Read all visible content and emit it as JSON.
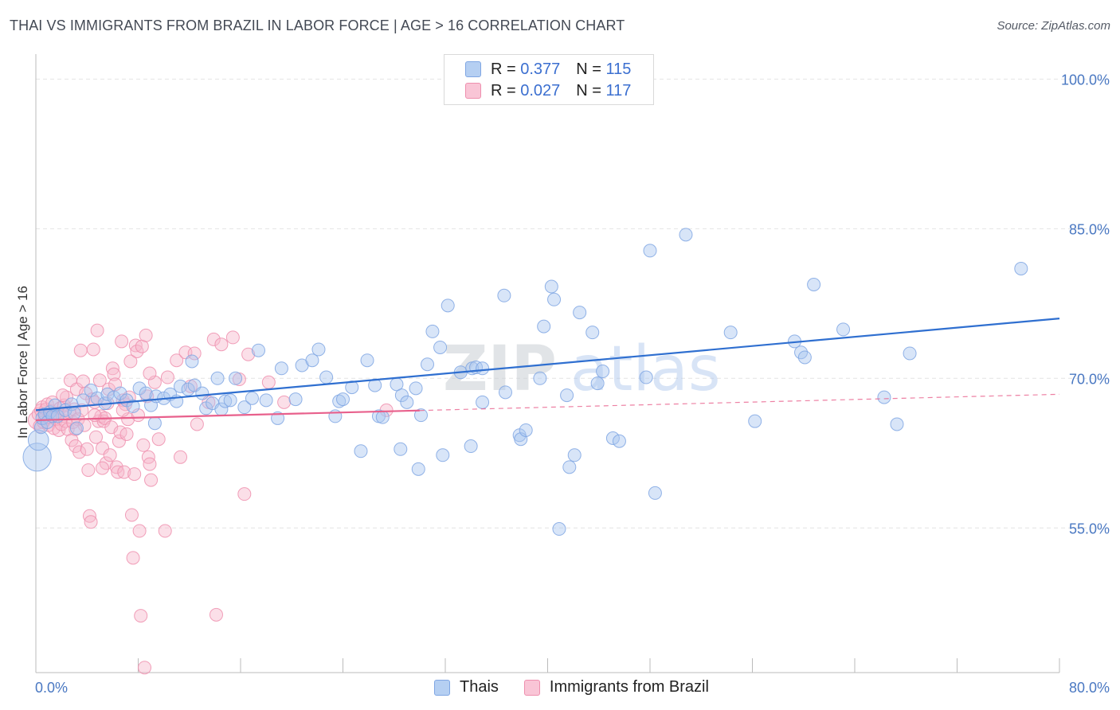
{
  "header": {
    "title": "THAI VS IMMIGRANTS FROM BRAZIL IN LABOR FORCE | AGE > 16 CORRELATION CHART",
    "source": "Source: ZipAtlas.com"
  },
  "legend": {
    "r_label": "R =",
    "n_label": "N =",
    "rows": [
      {
        "r": "0.377",
        "n": "115"
      },
      {
        "r": "0.027",
        "n": "117"
      }
    ]
  },
  "watermark": {
    "zip": "ZIP",
    "atlas": "atlas"
  },
  "colors": {
    "thai_fill": "#a9c6f0",
    "thai_stroke": "#7fa6e3",
    "thai_line": "#2f6fd0",
    "brazil_fill": "#f6b8cc",
    "brazil_stroke": "#ee8fae",
    "brazil_line": "#e8608c",
    "grid": "#e4e4e4",
    "tick_text": "#4a78c2"
  },
  "chart_data": {
    "type": "scatter",
    "title": "THAI VS IMMIGRANTS FROM BRAZIL IN LABOR FORCE | AGE > 16 CORRELATION CHART",
    "xlabel": "",
    "ylabel": "In Labor Force | Age > 16",
    "xlim": [
      0,
      80
    ],
    "ylim": [
      40.5,
      102.5
    ],
    "y_ticks": [
      {
        "value": 55,
        "label": "55.0%"
      },
      {
        "value": 70,
        "label": "70.0%"
      },
      {
        "value": 85,
        "label": "85.0%"
      },
      {
        "value": 100,
        "label": "100.0%"
      }
    ],
    "x_ticks_labeled": [
      {
        "value": 0,
        "label": "0.0%"
      },
      {
        "value": 80,
        "label": "80.0%"
      }
    ],
    "x_minor_ticks": [
      8,
      16,
      24,
      32,
      40,
      48,
      56,
      64,
      72,
      80
    ],
    "series": [
      {
        "name": "Thais",
        "r": 0.377,
        "n": 115,
        "trend": {
          "x0": 0,
          "y0": 66.8,
          "x1": 80,
          "y1": 76.0,
          "dashed_from": null
        },
        "points": [
          [
            0.1,
            62.1,
            2.2
          ],
          [
            0.2,
            63.8,
            1.6
          ],
          [
            0.4,
            65.1,
            1.0
          ],
          [
            0.5,
            66.0,
            1.0
          ],
          [
            0.7,
            66.4,
            1.0
          ],
          [
            0.9,
            65.6,
            1.0
          ],
          [
            1.1,
            66.6,
            1.0
          ],
          [
            1.3,
            66.2,
            1.0
          ],
          [
            1.5,
            67.3,
            1.0
          ],
          [
            1.7,
            66.2,
            1.0
          ],
          [
            2.3,
            66.8,
            1.0
          ],
          [
            2.8,
            67.4,
            1.0
          ],
          [
            3.0,
            66.5,
            1.0
          ],
          [
            3.2,
            65.0,
            1.0
          ],
          [
            3.7,
            67.8,
            1.0
          ],
          [
            4.3,
            68.8,
            1.0
          ],
          [
            4.8,
            68.0,
            1.0
          ],
          [
            5.4,
            67.5,
            1.0
          ],
          [
            5.6,
            68.4,
            1.0
          ],
          [
            6.1,
            68.1,
            1.0
          ],
          [
            6.6,
            68.5,
            1.0
          ],
          [
            7.1,
            67.8,
            1.0
          ],
          [
            7.6,
            67.2,
            1.0
          ],
          [
            8.1,
            69.0,
            1.0
          ],
          [
            8.6,
            68.5,
            1.0
          ],
          [
            9.0,
            67.3,
            1.0
          ],
          [
            9.4,
            68.2,
            1.0
          ],
          [
            10.0,
            68.0,
            1.0
          ],
          [
            10.5,
            68.4,
            1.0
          ],
          [
            11.0,
            67.7,
            1.0
          ],
          [
            11.3,
            69.2,
            1.0
          ],
          [
            11.9,
            68.9,
            1.0
          ],
          [
            12.2,
            71.7,
            1.0
          ],
          [
            12.4,
            69.3,
            1.0
          ],
          [
            13.0,
            68.5,
            1.0
          ],
          [
            13.3,
            67.0,
            1.0
          ],
          [
            13.8,
            67.5,
            1.0
          ],
          [
            14.2,
            70.0,
            1.0
          ],
          [
            14.5,
            66.9,
            1.0
          ],
          [
            14.8,
            67.7,
            1.0
          ],
          [
            15.2,
            67.8,
            1.0
          ],
          [
            15.6,
            70.0,
            1.0
          ],
          [
            16.3,
            67.1,
            1.0
          ],
          [
            16.9,
            68.0,
            1.0
          ],
          [
            17.4,
            72.8,
            1.0
          ],
          [
            18.0,
            67.8,
            1.0
          ],
          [
            18.9,
            66.0,
            1.0
          ],
          [
            19.2,
            71.0,
            1.0
          ],
          [
            20.3,
            67.9,
            1.0
          ],
          [
            20.8,
            71.3,
            1.0
          ],
          [
            21.6,
            71.8,
            1.0
          ],
          [
            22.1,
            72.9,
            1.0
          ],
          [
            22.7,
            70.1,
            1.0
          ],
          [
            23.4,
            66.2,
            1.0
          ],
          [
            23.7,
            67.7,
            1.0
          ],
          [
            24.0,
            67.9,
            1.0
          ],
          [
            24.7,
            69.1,
            1.0
          ],
          [
            25.9,
            71.8,
            1.0
          ],
          [
            26.5,
            69.3,
            1.0
          ],
          [
            26.8,
            66.2,
            1.0
          ],
          [
            28.2,
            69.4,
            1.0
          ],
          [
            28.6,
            68.3,
            1.0
          ],
          [
            29.0,
            67.6,
            1.0
          ],
          [
            29.7,
            69.0,
            1.0
          ],
          [
            30.1,
            66.3,
            1.0
          ],
          [
            30.6,
            71.4,
            1.0
          ],
          [
            31.0,
            74.7,
            1.0
          ],
          [
            31.6,
            73.1,
            1.0
          ],
          [
            32.2,
            77.3,
            1.0
          ],
          [
            33.2,
            70.6,
            1.0
          ],
          [
            34.1,
            71.0,
            1.0
          ],
          [
            34.4,
            71.1,
            1.0
          ],
          [
            34.9,
            71.0,
            1.0
          ],
          [
            36.6,
            78.3,
            1.0
          ],
          [
            37.8,
            64.3,
            1.0
          ],
          [
            37.9,
            63.9,
            1.0
          ],
          [
            38.3,
            64.8,
            1.0
          ],
          [
            39.4,
            70.0,
            1.0
          ],
          [
            39.7,
            75.2,
            1.0
          ],
          [
            40.3,
            79.2,
            1.0
          ],
          [
            40.5,
            77.9,
            1.0
          ],
          [
            41.5,
            68.3,
            1.0
          ],
          [
            41.7,
            61.1,
            1.0
          ],
          [
            42.5,
            76.6,
            1.0
          ],
          [
            43.5,
            74.6,
            1.0
          ],
          [
            43.9,
            69.5,
            1.0
          ],
          [
            44.3,
            70.7,
            1.0
          ],
          [
            45.1,
            64.0,
            1.0
          ],
          [
            45.6,
            63.7,
            1.0
          ],
          [
            47.7,
            70.1,
            1.0
          ],
          [
            48.0,
            82.8,
            1.0
          ],
          [
            48.4,
            58.5,
            1.0
          ],
          [
            50.8,
            84.4,
            1.0
          ],
          [
            54.3,
            74.6,
            1.0
          ],
          [
            56.2,
            65.7,
            1.0
          ],
          [
            59.3,
            73.7,
            1.0
          ],
          [
            59.8,
            72.6,
            1.0
          ],
          [
            60.1,
            72.1,
            1.0
          ],
          [
            60.8,
            79.4,
            1.0
          ],
          [
            63.1,
            74.9,
            1.0
          ],
          [
            66.3,
            68.1,
            1.0
          ],
          [
            67.3,
            65.4,
            1.0
          ],
          [
            68.3,
            72.5,
            1.0
          ],
          [
            77.0,
            81.0,
            1.0
          ],
          [
            25.4,
            62.7,
            1.0
          ],
          [
            27.1,
            66.1,
            1.0
          ],
          [
            28.5,
            62.9,
            1.0
          ],
          [
            29.9,
            60.9,
            1.0
          ],
          [
            31.8,
            62.3,
            1.0
          ],
          [
            34.0,
            63.2,
            1.0
          ],
          [
            34.9,
            67.6,
            1.0
          ],
          [
            36.7,
            68.6,
            1.0
          ],
          [
            40.9,
            54.9,
            1.0
          ],
          [
            42.1,
            62.3,
            1.0
          ],
          [
            9.3,
            65.5,
            1.0
          ]
        ]
      },
      {
        "name": "Immigrants from Brazil",
        "r": 0.027,
        "n": 117,
        "trend": {
          "x0": 0,
          "y0": 65.8,
          "x1": 80,
          "y1": 68.4,
          "dashed_from": 30
        },
        "points": [
          [
            0.1,
            65.8,
            1.4
          ],
          [
            0.2,
            66.4,
            1.0
          ],
          [
            0.3,
            65.2,
            1.0
          ],
          [
            0.4,
            66.8,
            1.0
          ],
          [
            0.5,
            67.1,
            1.0
          ],
          [
            0.6,
            65.6,
            1.0
          ],
          [
            0.7,
            66.0,
            1.0
          ],
          [
            0.8,
            66.9,
            1.0
          ],
          [
            0.9,
            67.4,
            1.0
          ],
          [
            1.0,
            65.3,
            1.0
          ],
          [
            1.1,
            66.1,
            1.0
          ],
          [
            1.2,
            66.7,
            1.0
          ],
          [
            1.3,
            67.6,
            1.0
          ],
          [
            1.4,
            65.0,
            1.0
          ],
          [
            1.5,
            66.3,
            1.0
          ],
          [
            1.6,
            65.9,
            1.0
          ],
          [
            1.7,
            66.5,
            1.0
          ],
          [
            1.8,
            64.8,
            1.0
          ],
          [
            1.9,
            67.0,
            1.0
          ],
          [
            2.0,
            65.4,
            1.0
          ],
          [
            2.1,
            66.2,
            1.0
          ],
          [
            2.2,
            67.3,
            1.0
          ],
          [
            2.3,
            65.7,
            1.0
          ],
          [
            2.4,
            68.1,
            1.0
          ],
          [
            2.5,
            64.9,
            1.0
          ],
          [
            2.6,
            66.6,
            1.0
          ],
          [
            2.7,
            69.8,
            1.0
          ],
          [
            2.8,
            63.8,
            1.0
          ],
          [
            2.9,
            65.6,
            1.0
          ],
          [
            3.0,
            66.9,
            1.0
          ],
          [
            3.1,
            63.2,
            1.0
          ],
          [
            3.2,
            68.9,
            1.0
          ],
          [
            3.3,
            65.9,
            1.0
          ],
          [
            3.4,
            62.6,
            1.0
          ],
          [
            3.5,
            72.8,
            1.0
          ],
          [
            3.6,
            66.8,
            1.0
          ],
          [
            3.7,
            69.7,
            1.0
          ],
          [
            3.8,
            65.3,
            1.0
          ],
          [
            3.9,
            68.5,
            1.0
          ],
          [
            4.0,
            62.9,
            1.0
          ],
          [
            4.1,
            60.8,
            1.0
          ],
          [
            4.2,
            56.2,
            1.0
          ],
          [
            4.3,
            55.6,
            1.0
          ],
          [
            4.4,
            67.9,
            1.0
          ],
          [
            4.5,
            72.9,
            1.0
          ],
          [
            4.6,
            67.6,
            1.0
          ],
          [
            4.7,
            64.1,
            1.0
          ],
          [
            4.8,
            74.8,
            1.0
          ],
          [
            4.9,
            65.7,
            1.0
          ],
          [
            5.0,
            69.8,
            1.0
          ],
          [
            5.1,
            66.2,
            1.0
          ],
          [
            5.2,
            63.0,
            1.0
          ],
          [
            5.3,
            65.7,
            1.0
          ],
          [
            5.4,
            66.0,
            1.0
          ],
          [
            5.5,
            61.5,
            1.0
          ],
          [
            5.6,
            67.5,
            1.0
          ],
          [
            5.7,
            68.9,
            1.0
          ],
          [
            5.8,
            62.3,
            1.0
          ],
          [
            5.9,
            65.1,
            1.0
          ],
          [
            6.0,
            71.0,
            1.0
          ],
          [
            6.1,
            70.4,
            1.0
          ],
          [
            6.2,
            69.4,
            1.0
          ],
          [
            6.3,
            61.1,
            1.0
          ],
          [
            6.4,
            60.6,
            1.0
          ],
          [
            6.5,
            63.7,
            1.0
          ],
          [
            6.6,
            64.6,
            1.0
          ],
          [
            6.7,
            73.7,
            1.0
          ],
          [
            6.8,
            67.8,
            1.0
          ],
          [
            6.9,
            60.6,
            1.0
          ],
          [
            7.0,
            67.4,
            1.0
          ],
          [
            7.2,
            65.9,
            1.0
          ],
          [
            7.3,
            68.1,
            1.0
          ],
          [
            7.4,
            71.7,
            1.0
          ],
          [
            7.5,
            56.3,
            1.0
          ],
          [
            7.6,
            52.0,
            1.0
          ],
          [
            7.7,
            60.4,
            1.0
          ],
          [
            7.8,
            73.3,
            1.0
          ],
          [
            7.9,
            72.7,
            1.0
          ],
          [
            8.0,
            66.3,
            1.0
          ],
          [
            8.1,
            54.7,
            1.0
          ],
          [
            8.2,
            46.2,
            1.0
          ],
          [
            8.3,
            73.2,
            1.0
          ],
          [
            8.4,
            63.3,
            1.0
          ],
          [
            8.5,
            41.0,
            1.0
          ],
          [
            8.6,
            74.3,
            1.0
          ],
          [
            8.7,
            68.2,
            1.0
          ],
          [
            8.8,
            62.1,
            1.0
          ],
          [
            8.9,
            61.4,
            1.0
          ],
          [
            9.0,
            59.8,
            1.0
          ],
          [
            9.3,
            69.6,
            1.0
          ],
          [
            9.6,
            63.9,
            1.0
          ],
          [
            10.1,
            54.7,
            1.0
          ],
          [
            10.3,
            70.1,
            1.0
          ],
          [
            11.0,
            71.8,
            1.0
          ],
          [
            11.3,
            62.1,
            1.0
          ],
          [
            11.7,
            72.6,
            1.0
          ],
          [
            12.1,
            69.2,
            1.0
          ],
          [
            12.4,
            72.5,
            1.0
          ],
          [
            12.6,
            65.4,
            1.0
          ],
          [
            13.5,
            67.6,
            1.0
          ],
          [
            13.9,
            73.9,
            1.0
          ],
          [
            14.1,
            46.3,
            1.0
          ],
          [
            14.5,
            73.4,
            1.0
          ],
          [
            15.4,
            74.1,
            1.0
          ],
          [
            15.9,
            69.9,
            1.0
          ],
          [
            16.3,
            58.4,
            1.0
          ],
          [
            16.6,
            72.4,
            1.0
          ],
          [
            18.2,
            69.6,
            1.0
          ],
          [
            19.4,
            67.6,
            1.0
          ],
          [
            27.4,
            66.8,
            1.0
          ],
          [
            8.9,
            70.5,
            1.0
          ],
          [
            7.1,
            64.4,
            1.0
          ],
          [
            6.8,
            66.8,
            1.0
          ],
          [
            4.6,
            66.3,
            1.0
          ],
          [
            5.2,
            61.0,
            1.0
          ],
          [
            3.1,
            64.9,
            1.0
          ],
          [
            2.1,
            68.3,
            1.0
          ]
        ]
      }
    ]
  },
  "bottom_legend": [
    "Thais",
    "Immigrants from Brazil"
  ]
}
